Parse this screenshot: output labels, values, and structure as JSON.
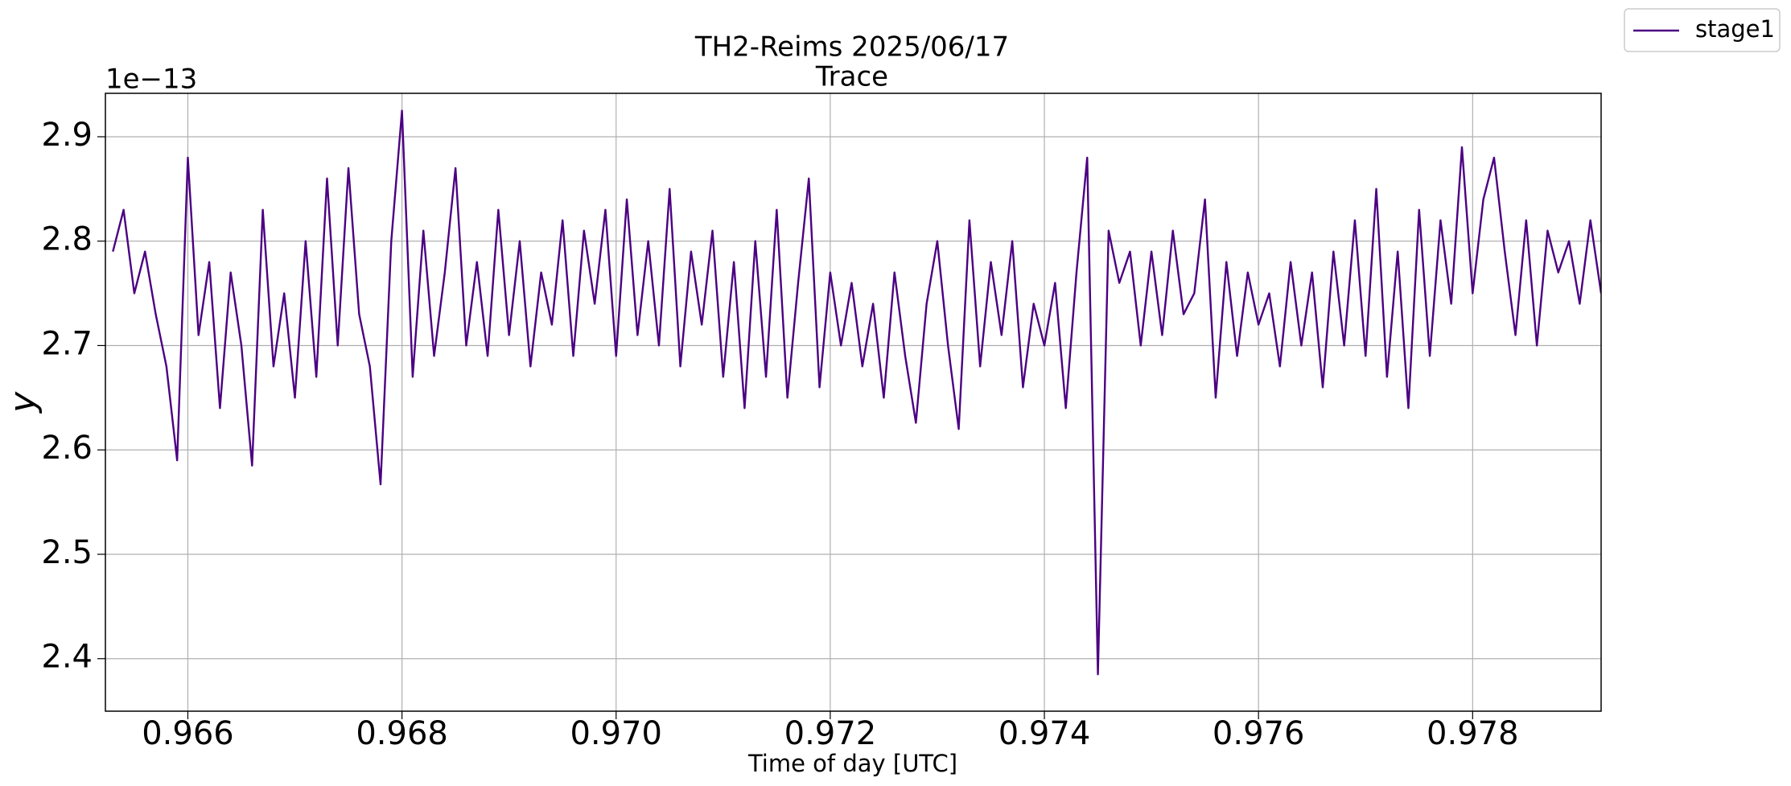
{
  "chart_data": {
    "type": "line",
    "title": "TH2-Reims 2025/06/17",
    "subtitle": "Trace",
    "x_label": "Time of day [UTC]",
    "y_label": "y",
    "y_offset": "1e−13",
    "legend": "upper right",
    "grid": true,
    "xlim": [
      0.96523,
      0.9792
    ],
    "ylim": [
      2.3497,
      2.9416
    ],
    "xticks": [
      {
        "value": 0.966,
        "label": "0.966"
      },
      {
        "value": 0.968,
        "label": "0.968"
      },
      {
        "value": 0.97,
        "label": "0.970"
      },
      {
        "value": 0.972,
        "label": "0.972"
      },
      {
        "value": 0.974,
        "label": "0.974"
      },
      {
        "value": 0.976,
        "label": "0.976"
      },
      {
        "value": 0.978,
        "label": "0.978"
      }
    ],
    "yticks": [
      2.4,
      2.5,
      2.6,
      2.7,
      2.8,
      2.9
    ],
    "x": [
      0.9653,
      0.9654,
      0.9655,
      0.9656,
      0.9657,
      0.9658,
      0.9659,
      0.966,
      0.9661,
      0.9662,
      0.9663,
      0.9664,
      0.9665,
      0.9666,
      0.9667,
      0.9668,
      0.9669,
      0.967,
      0.9671,
      0.9672,
      0.9673,
      0.9674,
      0.9675,
      0.9676,
      0.9677,
      0.9678,
      0.9679,
      0.968,
      0.9681,
      0.9682,
      0.9683,
      0.9684,
      0.9685,
      0.9686,
      0.9687,
      0.9688,
      0.9689,
      0.969,
      0.9691,
      0.9692,
      0.9693,
      0.9694,
      0.9695,
      0.9696,
      0.9697,
      0.9698,
      0.9699,
      0.97,
      0.9701,
      0.9702,
      0.9703,
      0.9704,
      0.9705,
      0.9706,
      0.9707,
      0.9708,
      0.9709,
      0.971,
      0.9711,
      0.9712,
      0.9713,
      0.9714,
      0.9715,
      0.9716,
      0.9717,
      0.9718,
      0.9719,
      0.972,
      0.9721,
      0.9722,
      0.9723,
      0.9724,
      0.9725,
      0.9726,
      0.9727,
      0.9728,
      0.9729,
      0.973,
      0.9731,
      0.9732,
      0.9733,
      0.9734,
      0.9735,
      0.9736,
      0.9737,
      0.9738,
      0.9739,
      0.974,
      0.9741,
      0.9742,
      0.9743,
      0.9744,
      0.9745,
      0.9746,
      0.9747,
      0.9748,
      0.9749,
      0.975,
      0.9751,
      0.9752,
      0.9753,
      0.9754,
      0.9755,
      0.9756,
      0.9757,
      0.9758,
      0.9759,
      0.976,
      0.9761,
      0.9762,
      0.9763,
      0.9764,
      0.9765,
      0.9766,
      0.9767,
      0.9768,
      0.9769,
      0.977,
      0.9771,
      0.9772,
      0.9773,
      0.9774,
      0.9775,
      0.9776,
      0.9777,
      0.9778,
      0.9779,
      0.978,
      0.9781,
      0.9782,
      0.9783,
      0.9784,
      0.9785,
      0.9786,
      0.9787,
      0.9788,
      0.9789,
      0.979,
      0.9791,
      0.9792
    ],
    "series": [
      {
        "name": "stage1",
        "color": "#4b0082",
        "values": [
          2.79,
          2.83,
          2.75,
          2.79,
          2.73,
          2.68,
          2.59,
          2.88,
          2.71,
          2.78,
          2.64,
          2.77,
          2.7,
          2.585,
          2.83,
          2.68,
          2.75,
          2.65,
          2.8,
          2.67,
          2.86,
          2.7,
          2.87,
          2.73,
          2.68,
          2.567,
          2.8,
          2.925,
          2.67,
          2.81,
          2.69,
          2.77,
          2.87,
          2.7,
          2.78,
          2.69,
          2.83,
          2.71,
          2.8,
          2.68,
          2.77,
          2.72,
          2.82,
          2.69,
          2.81,
          2.74,
          2.83,
          2.69,
          2.84,
          2.71,
          2.8,
          2.7,
          2.85,
          2.68,
          2.79,
          2.72,
          2.81,
          2.67,
          2.78,
          2.64,
          2.8,
          2.67,
          2.83,
          2.65,
          2.76,
          2.86,
          2.66,
          2.77,
          2.7,
          2.76,
          2.68,
          2.74,
          2.65,
          2.77,
          2.69,
          2.626,
          2.74,
          2.8,
          2.7,
          2.62,
          2.82,
          2.68,
          2.78,
          2.71,
          2.8,
          2.66,
          2.74,
          2.7,
          2.76,
          2.64,
          2.77,
          2.88,
          2.385,
          2.81,
          2.76,
          2.79,
          2.7,
          2.79,
          2.71,
          2.81,
          2.73,
          2.75,
          2.84,
          2.65,
          2.78,
          2.69,
          2.77,
          2.72,
          2.75,
          2.68,
          2.78,
          2.7,
          2.77,
          2.66,
          2.79,
          2.7,
          2.82,
          2.69,
          2.85,
          2.67,
          2.79,
          2.64,
          2.83,
          2.69,
          2.82,
          2.74,
          2.89,
          2.75,
          2.84,
          2.88,
          2.79,
          2.71,
          2.82,
          2.7,
          2.81,
          2.77,
          2.8,
          2.74,
          2.82,
          2.75
        ]
      }
    ]
  }
}
